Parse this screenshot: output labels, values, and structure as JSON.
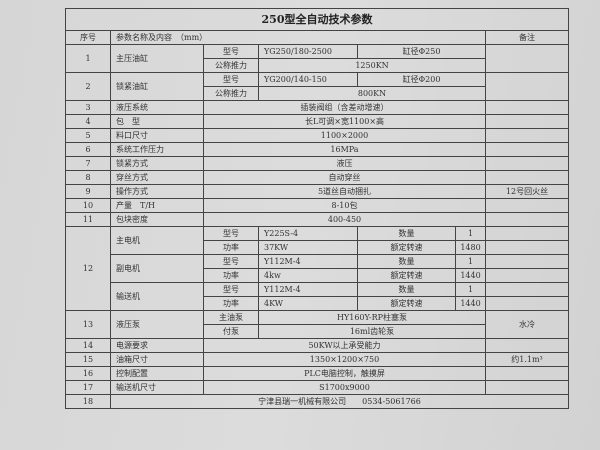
{
  "title": "250型全自动技术参数",
  "header": {
    "no": "序号",
    "param": "参数名称及内容　（mm）",
    "remark": "备注"
  },
  "rows": [
    {
      "no": "1",
      "name": "主压油缸",
      "sub": [
        [
          "型号",
          "YG250/180-2500",
          "缸径Φ250"
        ],
        [
          "公称推力",
          "1250KN"
        ]
      ],
      "remark": ""
    },
    {
      "no": "2",
      "name": "锁紧油缸",
      "sub": [
        [
          "型号",
          "YG200/140-150",
          "缸径Φ200"
        ],
        [
          "公称推力",
          "800KN"
        ]
      ],
      "remark": ""
    },
    {
      "no": "3",
      "name": "液压系统",
      "value": "插装阀组（含差动增速）",
      "remark": ""
    },
    {
      "no": "4",
      "name": "包　型",
      "value": "长L可调×宽1100×高",
      "remark": ""
    },
    {
      "no": "5",
      "name": "料口尺寸",
      "value": "1100×2000",
      "remark": ""
    },
    {
      "no": "6",
      "name": "系统工作压力",
      "value": "16MPa",
      "remark": ""
    },
    {
      "no": "7",
      "name": "锁紧方式",
      "value": "液压",
      "remark": ""
    },
    {
      "no": "8",
      "name": "穿丝方式",
      "value": "自动穿丝",
      "remark": ""
    },
    {
      "no": "9",
      "name": "操作方式",
      "value": "5道丝自动捆扎",
      "remark": "12号回火丝"
    },
    {
      "no": "10",
      "name": "产量　T/H",
      "value": "8-10包",
      "remark": ""
    },
    {
      "no": "11",
      "name": "包块密度",
      "value": "400-450",
      "remark": ""
    }
  ],
  "motors": {
    "no": "12",
    "items": [
      {
        "name": "主电机",
        "model_label": "型号",
        "model": "Y225S-4",
        "qty_label": "数量",
        "qty": "1",
        "power_label": "功率",
        "power": "37KW",
        "speed_label": "额定转速",
        "speed": "1480"
      },
      {
        "name": "副电机",
        "model_label": "型号",
        "model": "Y112M-4",
        "qty_label": "数量",
        "qty": "1",
        "power_label": "功率",
        "power": "4kw",
        "speed_label": "额定转速",
        "speed": "1440"
      },
      {
        "name": "输送机",
        "model_label": "型号",
        "model": "Y112M-4",
        "qty_label": "数量",
        "qty": "1",
        "power_label": "功率",
        "power": "4KW",
        "speed_label": "额定转速",
        "speed": "1440"
      }
    ]
  },
  "pump": {
    "no": "13",
    "name": "液压泵",
    "main_label": "主油泵",
    "main": "HY160Y-RP柱塞泵",
    "aux_label": "付泵",
    "aux": "16ml齿轮泵",
    "remark": "水冷"
  },
  "rows2": [
    {
      "no": "14",
      "name": "电源要求",
      "value": "50KW以上承受能力",
      "remark": ""
    },
    {
      "no": "15",
      "name": "油箱尺寸",
      "value": "1350×1200×750",
      "remark": "约1.1m³"
    },
    {
      "no": "16",
      "name": "控制配置",
      "value": "PLC电脑控制，触摸屏",
      "remark": ""
    },
    {
      "no": "17",
      "name": "输送机尺寸",
      "value": "S1700x9000",
      "remark": ""
    }
  ],
  "footer": {
    "no": "18",
    "text": "宁津县瑞一机械有限公司　　0534-5061766"
  }
}
